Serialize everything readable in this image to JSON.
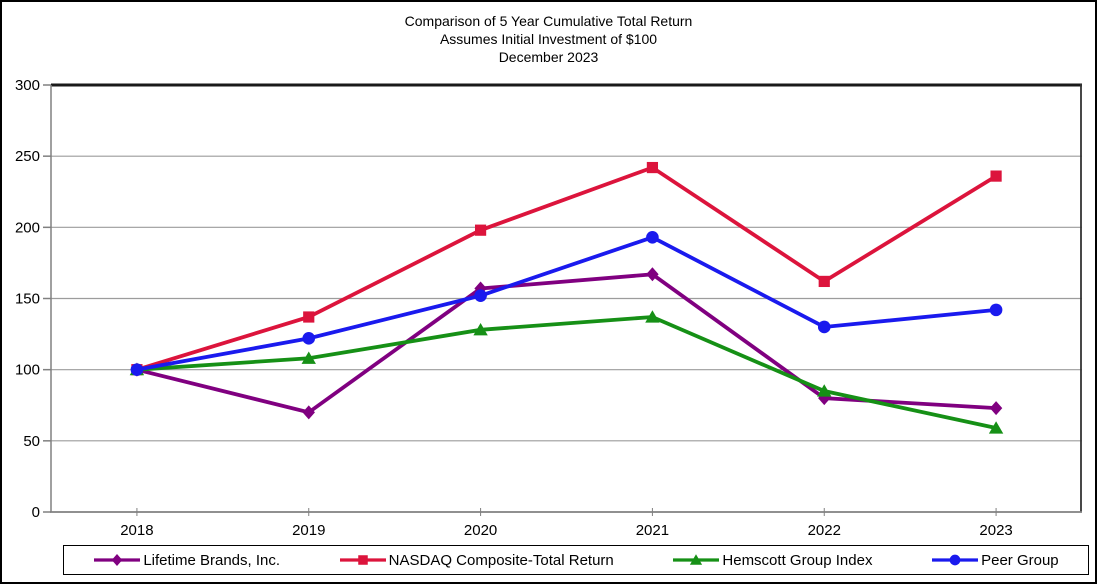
{
  "chart_data": {
    "type": "line",
    "title": "Comparison of 5 Year Cumulative Total Return",
    "subtitle": "Assumes Initial Investment of $100",
    "date_line": "December 2023",
    "categories": [
      "2018",
      "2019",
      "2020",
      "2021",
      "2022",
      "2023"
    ],
    "series": [
      {
        "name": "Lifetime Brands, Inc.",
        "marker": "diamond",
        "color": "#800080",
        "values": [
          100,
          70,
          157,
          167,
          80,
          73
        ]
      },
      {
        "name": "NASDAQ Composite-Total Return",
        "marker": "square",
        "color": "#DC143C",
        "values": [
          100,
          137,
          198,
          242,
          162,
          236
        ]
      },
      {
        "name": "Hemscott Group Index",
        "marker": "triangle",
        "color": "#169016",
        "values": [
          100,
          108,
          128,
          137,
          85,
          59
        ]
      },
      {
        "name": "Peer Group",
        "marker": "circle",
        "color": "#1A1AEE",
        "values": [
          100,
          122,
          152,
          193,
          130,
          142
        ]
      }
    ],
    "ylim": [
      0,
      300
    ],
    "y_ticks": [
      0,
      50,
      100,
      150,
      200,
      250,
      300
    ],
    "grid": true,
    "legend_position": "bottom",
    "grid_color": "#9C9C9C",
    "axis_color": "#808080",
    "plot_border_top_color": "#1A1A1A",
    "plot_border_right_color": "#333333"
  }
}
